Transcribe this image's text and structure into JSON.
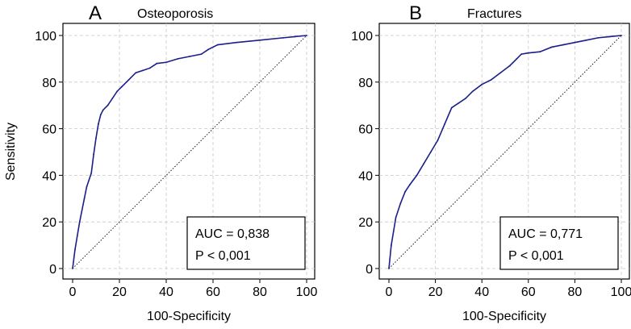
{
  "figure": {
    "y_axis_label": "Sensitivity"
  },
  "chart_data": [
    {
      "type": "line",
      "panel_letter": "A",
      "title": "Osteoporosis",
      "xlabel": "100-Specificity",
      "ylabel": "Sensitivity",
      "xlim": [
        0,
        100
      ],
      "ylim": [
        0,
        100
      ],
      "xticks": [
        0,
        20,
        40,
        60,
        80,
        100
      ],
      "yticks": [
        0,
        20,
        40,
        60,
        80,
        100
      ],
      "grid": true,
      "colors": {
        "roc": "#1b1f8a",
        "reference": "#000000"
      },
      "series": [
        {
          "name": "ROC curve",
          "x": [
            0,
            1,
            2,
            3,
            5,
            6,
            8,
            9,
            10,
            11,
            12,
            13,
            15,
            17,
            19,
            21,
            24,
            27,
            30,
            33,
            36,
            40,
            45,
            50,
            55,
            58,
            62,
            70,
            80,
            90,
            95,
            100
          ],
          "y": [
            0,
            8,
            14,
            20,
            30,
            35,
            41,
            49,
            56,
            62,
            66,
            68,
            70,
            73,
            76,
            78,
            81,
            84,
            85,
            86,
            88,
            88.5,
            90,
            91,
            92,
            94,
            96,
            97,
            98,
            99,
            99.5,
            100
          ]
        },
        {
          "name": "Reference line",
          "x": [
            0,
            100
          ],
          "y": [
            0,
            100
          ]
        }
      ],
      "stats": {
        "auc": "AUC = 0,838",
        "p": "P < 0,001"
      }
    },
    {
      "type": "line",
      "panel_letter": "B",
      "title": "Fractures",
      "xlabel": "100-Specificity",
      "ylabel": "",
      "xlim": [
        0,
        100
      ],
      "ylim": [
        0,
        100
      ],
      "xticks": [
        0,
        20,
        40,
        60,
        80,
        100
      ],
      "yticks": [
        0,
        20,
        40,
        60,
        80,
        100
      ],
      "grid": true,
      "colors": {
        "roc": "#1b1f8a",
        "reference": "#000000"
      },
      "series": [
        {
          "name": "ROC curve",
          "x": [
            0,
            1,
            2,
            3,
            5,
            7,
            9,
            12,
            15,
            18,
            21,
            24,
            27,
            30,
            33,
            36,
            40,
            44,
            48,
            52,
            55,
            57,
            60,
            65,
            70,
            75,
            80,
            85,
            90,
            95,
            100
          ],
          "y": [
            0,
            10,
            16,
            22,
            28,
            33,
            36,
            40,
            45,
            50,
            55,
            62,
            69,
            71,
            73,
            76,
            79,
            81,
            84,
            87,
            90,
            92,
            92.5,
            93,
            95,
            96,
            97,
            98,
            99,
            99.5,
            100
          ]
        },
        {
          "name": "Reference line",
          "x": [
            0,
            100
          ],
          "y": [
            0,
            100
          ]
        }
      ],
      "stats": {
        "auc": "AUC = 0,771",
        "p": "P < 0,001"
      }
    }
  ]
}
